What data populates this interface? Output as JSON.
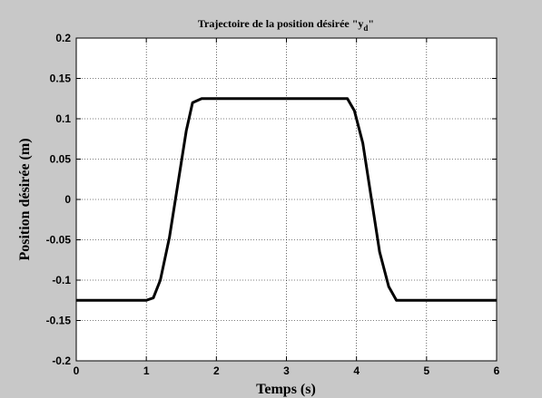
{
  "chart_data": {
    "type": "line",
    "title": [
      "Trajectoire de la position désirée \"y",
      "d",
      "\""
    ],
    "x_label": "Temps (s)",
    "y_label": "Position désirée (m)",
    "xlim": [
      0,
      6
    ],
    "ylim": [
      -0.2,
      0.2
    ],
    "xticks": [
      0,
      1,
      2,
      3,
      4,
      5,
      6
    ],
    "yticks": [
      -0.2,
      -0.15,
      -0.1,
      -0.05,
      0,
      0.05,
      0.1,
      0.15,
      0.2
    ],
    "grid": true,
    "series": [
      {
        "color": "#000000",
        "x": [
          0,
          1,
          1.1,
          1.2,
          1.33,
          1.57,
          1.66,
          1.79,
          3.87,
          3.97,
          4.09,
          4.33,
          4.46,
          4.57,
          6
        ],
        "values": [
          -0.125,
          -0.125,
          -0.122,
          -0.1,
          -0.047,
          0.085,
          0.12,
          0.125,
          0.125,
          0.11,
          0.07,
          -0.065,
          -0.108,
          -0.125,
          -0.125
        ]
      }
    ]
  }
}
